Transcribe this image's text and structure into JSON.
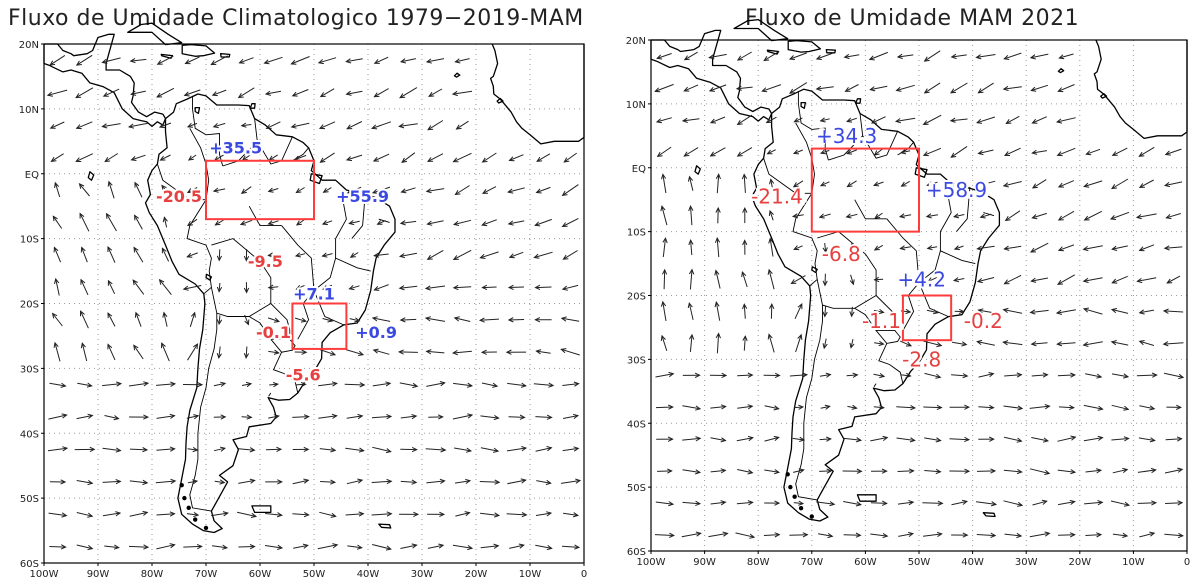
{
  "colors": {
    "positive": "#3b49e0",
    "negative": "#e64040",
    "box": "#ff3b3b",
    "arrow": "#222222",
    "coast": "#000000",
    "grid": "#9a9a9a"
  },
  "axes": {
    "lat_labels": [
      "20N",
      "10N",
      "EQ",
      "10S",
      "20S",
      "30S",
      "40S",
      "50S",
      "60S"
    ],
    "lon_labels": [
      "100W",
      "90W",
      "80W",
      "70W",
      "60W",
      "50W",
      "40W",
      "30W",
      "20W",
      "10W",
      "0"
    ]
  },
  "panels": [
    {
      "title": "Fluxo de Umidade Climatologico 1979−2019-MAM",
      "boxes": [
        {
          "name": "amazon-box",
          "lon": [
            -70,
            -50
          ],
          "lat": [
            -7,
            2
          ]
        },
        {
          "name": "southeast-box",
          "lon": [
            -54,
            -44
          ],
          "lat": [
            -27,
            -20
          ]
        }
      ],
      "fluxes": [
        {
          "name": "amazon-north-flux",
          "label": "+35.5",
          "sign": "pos",
          "lon": -64.5,
          "lat": 4
        },
        {
          "name": "amazon-east-flux",
          "label": "+55.9",
          "sign": "pos",
          "lon": -41,
          "lat": -3.5
        },
        {
          "name": "amazon-west-flux",
          "label": "-20.5",
          "sign": "neg",
          "lon": -75,
          "lat": -3.5
        },
        {
          "name": "amazon-south-flux",
          "label": "-9.5",
          "sign": "neg",
          "lon": -59,
          "lat": -13.5
        },
        {
          "name": "southeast-north-flux",
          "label": "+7.1",
          "sign": "pos",
          "lon": -50,
          "lat": -18.5
        },
        {
          "name": "southeast-east-flux",
          "label": "+0.9",
          "sign": "pos",
          "lon": -38.5,
          "lat": -24.5
        },
        {
          "name": "southeast-west-flux",
          "label": "-0.1",
          "sign": "neg",
          "lon": -57.5,
          "lat": -24.5
        },
        {
          "name": "southeast-south-flux",
          "label": "-5.6",
          "sign": "neg",
          "lon": -52,
          "lat": -31
        }
      ]
    },
    {
      "title": "Fluxo de Umidade MAM 2021",
      "boxes": [
        {
          "name": "amazon-box",
          "lon": [
            -70,
            -50
          ],
          "lat": [
            -10,
            3
          ]
        },
        {
          "name": "southeast-box",
          "lon": [
            -53,
            -44
          ],
          "lat": [
            -27,
            -20
          ]
        }
      ],
      "fluxes": [
        {
          "name": "amazon-north-flux",
          "label": "+34.3",
          "sign": "pos",
          "lon": -63.5,
          "lat": 5
        },
        {
          "name": "amazon-east-flux",
          "label": "+58.9",
          "sign": "pos",
          "lon": -43,
          "lat": -3.5
        },
        {
          "name": "amazon-west-flux",
          "label": "-21.4",
          "sign": "neg",
          "lon": -76.5,
          "lat": -4.5
        },
        {
          "name": "amazon-south-flux",
          "label": "-6.8",
          "sign": "neg",
          "lon": -64.5,
          "lat": -13.5
        },
        {
          "name": "southeast-north-flux",
          "label": "+4.2",
          "sign": "pos",
          "lon": -49.5,
          "lat": -17.5
        },
        {
          "name": "southeast-east-flux",
          "label": "-0.2",
          "sign": "neg",
          "lon": -38,
          "lat": -24
        },
        {
          "name": "southeast-west-flux",
          "label": "-1.1",
          "sign": "neg",
          "lon": -57,
          "lat": -24
        },
        {
          "name": "southeast-south-flux",
          "label": "-2.8",
          "sign": "neg",
          "lon": -49.5,
          "lat": -30
        }
      ]
    }
  ]
}
